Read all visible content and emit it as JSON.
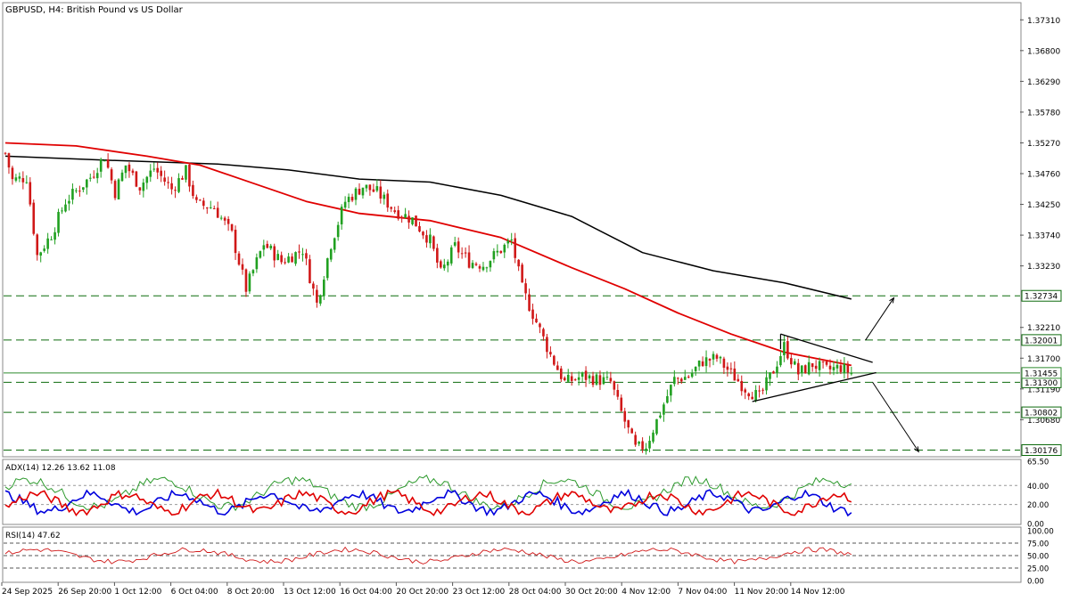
{
  "header": {
    "title": "GBPUSD, H4:  British Pound vs US Dollar"
  },
  "colors": {
    "bull": "#20a020",
    "bear": "#d01818",
    "ma_fast": "#e00000",
    "ma_slow": "#000000",
    "level": "#0d6b0d",
    "current": "#2e8b2e",
    "adx": "#2d9a2d",
    "plus_di": "#0000dd",
    "minus_di": "#e00000",
    "rsi": "#d01818"
  },
  "price_axis": {
    "ticks": [
      "1.37310",
      "1.36800",
      "1.36290",
      "1.35780",
      "1.35270",
      "1.34760",
      "1.34250",
      "1.33740",
      "1.33230",
      "1.32210",
      "1.31700",
      "1.31190",
      "1.30680"
    ]
  },
  "levels": [
    {
      "label": "1.32734",
      "value": 1.32734
    },
    {
      "label": "1.32001",
      "value": 1.32001
    },
    {
      "label": "1.31300",
      "value": 1.313
    },
    {
      "label": "1.30802",
      "value": 1.30802
    },
    {
      "label": "1.30176",
      "value": 1.30176
    }
  ],
  "current_price": {
    "label": "1.31455",
    "value": 1.31455
  },
  "time_axis": {
    "labels": [
      "24 Sep 2025",
      "26 Sep 20:00",
      "1 Oct 12:00",
      "6 Oct 04:00",
      "8 Oct 20:00",
      "13 Oct 12:00",
      "16 Oct 04:00",
      "20 Oct 20:00",
      "23 Oct 12:00",
      "28 Oct 04:00",
      "30 Oct 20:00",
      "4 Nov 12:00",
      "7 Nov 04:00",
      "11 Nov 20:00",
      "14 Nov 12:00"
    ]
  },
  "adx": {
    "label": "ADX(14) 12.26 13.62 11.08",
    "axis_top": "65.50",
    "ticks": [
      "40.00",
      "20.00",
      "0.00"
    ]
  },
  "rsi": {
    "label": "RSI(14) 47.62",
    "axis_top": "100.00",
    "ticks": [
      "75.00",
      "50.00",
      "25.00",
      "0.00"
    ]
  },
  "chart_data": {
    "type": "candlestick",
    "symbol": "GBPUSD",
    "timeframe": "H4",
    "ylim": [
      1.3008,
      1.3758
    ],
    "close_anchors": [
      {
        "bar": 0,
        "price": 1.351
      },
      {
        "bar": 2,
        "price": 1.3465
      },
      {
        "bar": 6,
        "price": 1.347
      },
      {
        "bar": 9,
        "price": 1.334
      },
      {
        "bar": 13,
        "price": 1.3375
      },
      {
        "bar": 17,
        "price": 1.343
      },
      {
        "bar": 24,
        "price": 1.347
      },
      {
        "bar": 28,
        "price": 1.3505
      },
      {
        "bar": 31,
        "price": 1.3445
      },
      {
        "bar": 34,
        "price": 1.349
      },
      {
        "bar": 38,
        "price": 1.3455
      },
      {
        "bar": 42,
        "price": 1.3485
      },
      {
        "bar": 47,
        "price": 1.345
      },
      {
        "bar": 51,
        "price": 1.348
      },
      {
        "bar": 54,
        "price": 1.3425
      },
      {
        "bar": 59,
        "price": 1.342
      },
      {
        "bar": 64,
        "price": 1.3375
      },
      {
        "bar": 68,
        "price": 1.3285
      },
      {
        "bar": 73,
        "price": 1.336
      },
      {
        "bar": 78,
        "price": 1.333
      },
      {
        "bar": 84,
        "price": 1.335
      },
      {
        "bar": 88,
        "price": 1.326
      },
      {
        "bar": 92,
        "price": 1.336
      },
      {
        "bar": 96,
        "price": 1.343
      },
      {
        "bar": 101,
        "price": 1.3455
      },
      {
        "bar": 105,
        "price": 1.3445
      },
      {
        "bar": 110,
        "price": 1.3415
      },
      {
        "bar": 115,
        "price": 1.34
      },
      {
        "bar": 120,
        "price": 1.3365
      },
      {
        "bar": 123,
        "price": 1.331
      },
      {
        "bar": 127,
        "price": 1.3355
      },
      {
        "bar": 131,
        "price": 1.333
      },
      {
        "bar": 135,
        "price": 1.3325
      },
      {
        "bar": 139,
        "price": 1.3345
      },
      {
        "bar": 143,
        "price": 1.3365
      },
      {
        "bar": 146,
        "price": 1.3285
      },
      {
        "bar": 150,
        "price": 1.323
      },
      {
        "bar": 154,
        "price": 1.3175
      },
      {
        "bar": 158,
        "price": 1.313
      },
      {
        "bar": 163,
        "price": 1.314
      },
      {
        "bar": 167,
        "price": 1.3135
      },
      {
        "bar": 171,
        "price": 1.313
      },
      {
        "bar": 174,
        "price": 1.308
      },
      {
        "bar": 178,
        "price": 1.302
      },
      {
        "bar": 181,
        "price": 1.3025
      },
      {
        "bar": 185,
        "price": 1.308
      },
      {
        "bar": 189,
        "price": 1.3135
      },
      {
        "bar": 193,
        "price": 1.314
      },
      {
        "bar": 197,
        "price": 1.3165
      },
      {
        "bar": 201,
        "price": 1.317
      },
      {
        "bar": 205,
        "price": 1.3145
      },
      {
        "bar": 209,
        "price": 1.312
      },
      {
        "bar": 213,
        "price": 1.3105
      },
      {
        "bar": 217,
        "price": 1.315
      },
      {
        "bar": 220,
        "price": 1.319
      },
      {
        "bar": 224,
        "price": 1.3145
      },
      {
        "bar": 228,
        "price": 1.316
      },
      {
        "bar": 232,
        "price": 1.315
      },
      {
        "bar": 236,
        "price": 1.3155
      },
      {
        "bar": 239,
        "price": 1.3145
      }
    ],
    "bars": 240,
    "ma_fast": [
      {
        "bar": 0,
        "price": 1.3527
      },
      {
        "bar": 20,
        "price": 1.3522
      },
      {
        "bar": 40,
        "price": 1.3505
      },
      {
        "bar": 55,
        "price": 1.349
      },
      {
        "bar": 70,
        "price": 1.346
      },
      {
        "bar": 85,
        "price": 1.343
      },
      {
        "bar": 100,
        "price": 1.341
      },
      {
        "bar": 120,
        "price": 1.3398
      },
      {
        "bar": 140,
        "price": 1.337
      },
      {
        "bar": 160,
        "price": 1.332
      },
      {
        "bar": 175,
        "price": 1.3285
      },
      {
        "bar": 190,
        "price": 1.3245
      },
      {
        "bar": 205,
        "price": 1.321
      },
      {
        "bar": 220,
        "price": 1.318
      },
      {
        "bar": 239,
        "price": 1.3158
      }
    ],
    "ma_slow": [
      {
        "bar": 0,
        "price": 1.3505
      },
      {
        "bar": 30,
        "price": 1.3498
      },
      {
        "bar": 60,
        "price": 1.3492
      },
      {
        "bar": 80,
        "price": 1.3482
      },
      {
        "bar": 100,
        "price": 1.3467
      },
      {
        "bar": 120,
        "price": 1.3462
      },
      {
        "bar": 140,
        "price": 1.344
      },
      {
        "bar": 160,
        "price": 1.3405
      },
      {
        "bar": 180,
        "price": 1.3345
      },
      {
        "bar": 200,
        "price": 1.3315
      },
      {
        "bar": 220,
        "price": 1.3295
      },
      {
        "bar": 239,
        "price": 1.3268
      }
    ],
    "triangle": {
      "upper": [
        {
          "bar": 219,
          "price": 1.321
        },
        {
          "bar": 245,
          "price": 1.3163
        }
      ],
      "lower": [
        {
          "bar": 211,
          "price": 1.3098
        },
        {
          "bar": 246,
          "price": 1.3146
        }
      ]
    },
    "arrows": [
      {
        "from": {
          "bar": 243,
          "price": 1.32
        },
        "to": {
          "bar": 251,
          "price": 1.327
        }
      },
      {
        "from": {
          "bar": 245,
          "price": 1.313
        },
        "to": {
          "bar": 258,
          "price": 1.3015
        }
      }
    ],
    "adx_ylim": [
      0,
      65.5
    ],
    "rsi_ylim": [
      0,
      100
    ]
  }
}
